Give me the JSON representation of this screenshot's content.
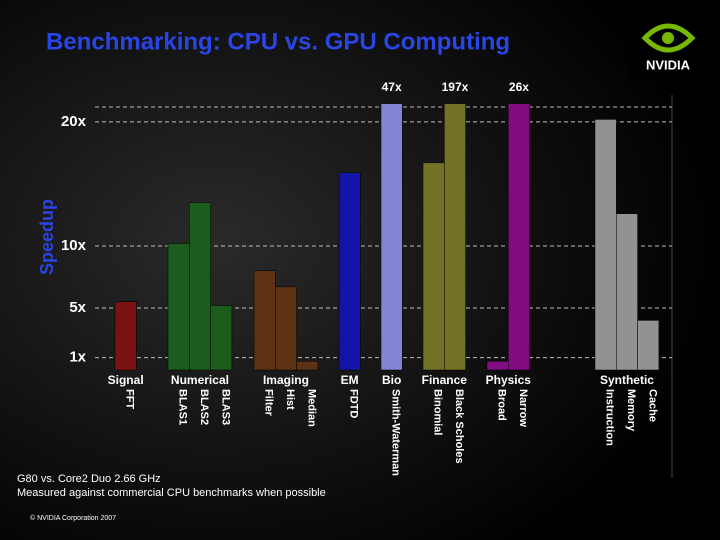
{
  "logo": "NVIDIA",
  "footnotes": [
    "G80 vs. Core2 Duo 2.66 GHz",
    "Measured against commercial CPU benchmarks when possible"
  ],
  "copyright": "© NVIDIA Corporation 2007",
  "chart_data": {
    "type": "bar",
    "title": "Benchmarking: CPU vs. GPU Computing",
    "y_label": "Speedup",
    "ylim": [
      0,
      21.2
    ],
    "yticks": [
      {
        "value": 1,
        "label": "1x"
      },
      {
        "value": 5,
        "label": "5x"
      },
      {
        "value": 10,
        "label": "10x"
      },
      {
        "value": 20,
        "label": "20x"
      }
    ],
    "grid": true,
    "groups": [
      {
        "name": "Signal",
        "color": "#7a1212",
        "categories": [
          "FFT"
        ],
        "values": [
          5.5
        ]
      },
      {
        "name": "Numerical",
        "color": "#1c5c1c",
        "categories": [
          "BLAS1",
          "BLAS2",
          "BLAS3"
        ],
        "values": [
          10.2,
          13.5,
          5.2
        ]
      },
      {
        "name": "Imaging",
        "color": "#5c3212",
        "categories": [
          "Filter",
          "Hist",
          "Median"
        ],
        "values": [
          8.0,
          6.7,
          0.7
        ]
      },
      {
        "name": "EM",
        "color": "#1414a8",
        "categories": [
          "FDTD"
        ],
        "values": [
          15.9
        ]
      },
      {
        "name": "Bio",
        "color": "#8484d4",
        "categories": [
          "Smith-Waterman"
        ],
        "values": [
          47
        ],
        "value_labels": [
          "47x"
        ]
      },
      {
        "name": "Finance",
        "color": "#727224",
        "categories": [
          "Binomial",
          "Black Scholes"
        ],
        "values": [
          16.7,
          197
        ],
        "value_labels": [
          null,
          "197x"
        ]
      },
      {
        "name": "Physics",
        "color": "#820c82",
        "categories": [
          "Broad",
          "Narrow"
        ],
        "values": [
          0.7,
          26
        ],
        "value_labels": [
          null,
          "26x"
        ]
      },
      {
        "name": "Synthetic",
        "color": "#929292",
        "categories": [
          "Instruction",
          "Memory",
          "Cache"
        ],
        "values": [
          20.2,
          12.6,
          4.0
        ]
      }
    ]
  }
}
